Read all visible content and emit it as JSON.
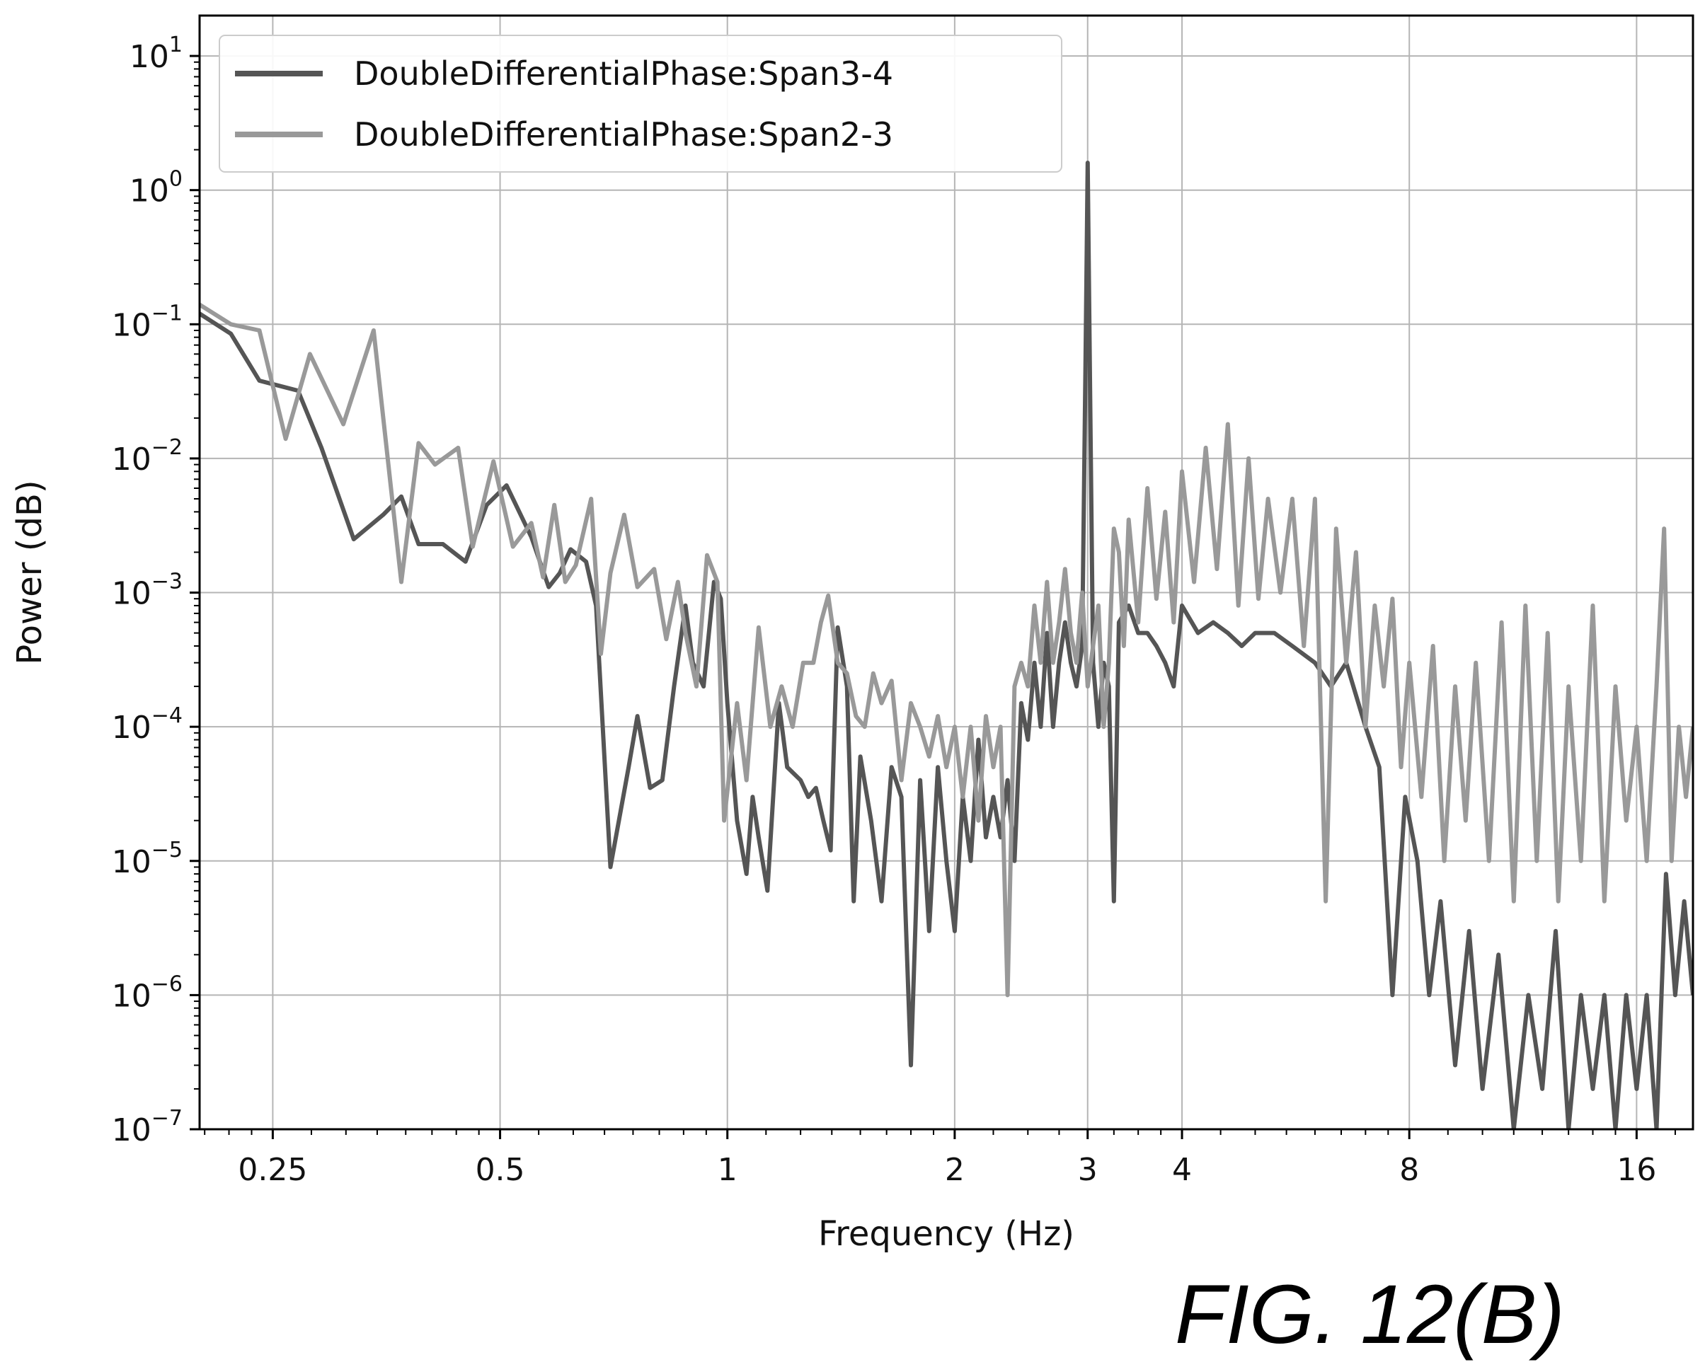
{
  "figure": {
    "caption": "FIG. 12(B)"
  },
  "chart_data": {
    "type": "line",
    "xlabel": "Frequency (Hz)",
    "ylabel": "Power (dB)",
    "xscale": "log2",
    "yscale": "log10",
    "xlim": [
      0.2,
      19.0
    ],
    "ylim": [
      1e-07,
      20
    ],
    "grid": true,
    "legend_position": "top-left",
    "x_ticks": [
      {
        "value": 0.25,
        "label": "0.25"
      },
      {
        "value": 0.5,
        "label": "0.5"
      },
      {
        "value": 1,
        "label": "1"
      },
      {
        "value": 2,
        "label": "2"
      },
      {
        "value": 3,
        "label": "3"
      },
      {
        "value": 4,
        "label": "4"
      },
      {
        "value": 8,
        "label": "8"
      },
      {
        "value": 16,
        "label": "16"
      }
    ],
    "y_ticks": [
      {
        "value": 10,
        "base": "10",
        "exp": "1"
      },
      {
        "value": 1,
        "base": "10",
        "exp": "0"
      },
      {
        "value": 0.1,
        "base": "10",
        "exp": "−1"
      },
      {
        "value": 0.01,
        "base": "10",
        "exp": "−2"
      },
      {
        "value": 0.001,
        "base": "10",
        "exp": "−3"
      },
      {
        "value": 0.0001,
        "base": "10",
        "exp": "−4"
      },
      {
        "value": 1e-05,
        "base": "10",
        "exp": "−5"
      },
      {
        "value": 1e-06,
        "base": "10",
        "exp": "−6"
      },
      {
        "value": 1e-07,
        "base": "10",
        "exp": "−7"
      }
    ],
    "series": [
      {
        "name": "DoubleDifferentialPhase:Span3-4",
        "color": "#555555",
        "points": [
          [
            0.2,
            0.12
          ],
          [
            0.22,
            0.085
          ],
          [
            0.24,
            0.038
          ],
          [
            0.27,
            0.032
          ],
          [
            0.29,
            0.012
          ],
          [
            0.32,
            0.0025
          ],
          [
            0.35,
            0.0038
          ],
          [
            0.37,
            0.0052
          ],
          [
            0.39,
            0.0023
          ],
          [
            0.42,
            0.0023
          ],
          [
            0.45,
            0.0017
          ],
          [
            0.48,
            0.0045
          ],
          [
            0.51,
            0.0063
          ],
          [
            0.55,
            0.0026
          ],
          [
            0.58,
            0.0011
          ],
          [
            0.6,
            0.0014
          ],
          [
            0.62,
            0.0021
          ],
          [
            0.65,
            0.0017
          ],
          [
            0.67,
            0.0008
          ],
          [
            0.7,
            9e-06
          ],
          [
            0.74,
            5e-05
          ],
          [
            0.76,
            0.00012
          ],
          [
            0.79,
            3.5e-05
          ],
          [
            0.82,
            4e-05
          ],
          [
            0.85,
            0.0002
          ],
          [
            0.88,
            0.0008
          ],
          [
            0.9,
            0.0003
          ],
          [
            0.93,
            0.0002
          ],
          [
            0.96,
            0.0012
          ],
          [
            0.98,
            0.0009
          ],
          [
            1.0,
            0.00015
          ],
          [
            1.03,
            2e-05
          ],
          [
            1.06,
            8e-06
          ],
          [
            1.08,
            3e-05
          ],
          [
            1.1,
            1.5e-05
          ],
          [
            1.13,
            6e-06
          ],
          [
            1.17,
            0.00015
          ],
          [
            1.2,
            5e-05
          ],
          [
            1.25,
            4e-05
          ],
          [
            1.28,
            3e-05
          ],
          [
            1.31,
            3.5e-05
          ],
          [
            1.34,
            2e-05
          ],
          [
            1.37,
            1.2e-05
          ],
          [
            1.4,
            0.00055
          ],
          [
            1.44,
            0.0002
          ],
          [
            1.47,
            5e-06
          ],
          [
            1.5,
            6e-05
          ],
          [
            1.55,
            2e-05
          ],
          [
            1.6,
            5e-06
          ],
          [
            1.65,
            5e-05
          ],
          [
            1.7,
            3e-05
          ],
          [
            1.75,
            3e-07
          ],
          [
            1.8,
            4e-05
          ],
          [
            1.85,
            3e-06
          ],
          [
            1.9,
            5e-05
          ],
          [
            1.95,
            1e-05
          ],
          [
            2.0,
            3e-06
          ],
          [
            2.05,
            3e-05
          ],
          [
            2.1,
            1e-05
          ],
          [
            2.15,
            8e-05
          ],
          [
            2.2,
            1.5e-05
          ],
          [
            2.25,
            3e-05
          ],
          [
            2.3,
            1.5e-05
          ],
          [
            2.35,
            4e-05
          ],
          [
            2.4,
            1e-05
          ],
          [
            2.45,
            0.00015
          ],
          [
            2.5,
            8e-05
          ],
          [
            2.55,
            0.0003
          ],
          [
            2.6,
            0.0001
          ],
          [
            2.65,
            0.0005
          ],
          [
            2.7,
            0.0001
          ],
          [
            2.75,
            0.0003
          ],
          [
            2.8,
            0.0006
          ],
          [
            2.85,
            0.0003
          ],
          [
            2.9,
            0.0002
          ],
          [
            2.95,
            0.0004
          ],
          [
            2.98,
            0.05
          ],
          [
            3.0,
            1.6
          ],
          [
            3.02,
            0.05
          ],
          [
            3.05,
            0.0003
          ],
          [
            3.1,
            0.0001
          ],
          [
            3.15,
            0.0003
          ],
          [
            3.2,
            0.0002
          ],
          [
            3.25,
            5e-06
          ],
          [
            3.3,
            0.0006
          ],
          [
            3.4,
            0.0008
          ],
          [
            3.5,
            0.0005
          ],
          [
            3.6,
            0.0005
          ],
          [
            3.7,
            0.0004
          ],
          [
            3.8,
            0.0003
          ],
          [
            3.9,
            0.0002
          ],
          [
            4.0,
            0.0008
          ],
          [
            4.2,
            0.0005
          ],
          [
            4.4,
            0.0006
          ],
          [
            4.6,
            0.0005
          ],
          [
            4.8,
            0.0004
          ],
          [
            5.0,
            0.0005
          ],
          [
            5.3,
            0.0005
          ],
          [
            5.6,
            0.0004
          ],
          [
            6.0,
            0.0003
          ],
          [
            6.3,
            0.0002
          ],
          [
            6.6,
            0.0003
          ],
          [
            7.0,
            0.0001
          ],
          [
            7.3,
            5e-05
          ],
          [
            7.6,
            1e-06
          ],
          [
            7.9,
            3e-05
          ],
          [
            8.2,
            1e-05
          ],
          [
            8.5,
            1e-06
          ],
          [
            8.8,
            5e-06
          ],
          [
            9.2,
            3e-07
          ],
          [
            9.6,
            3e-06
          ],
          [
            10.0,
            2e-07
          ],
          [
            10.5,
            2e-06
          ],
          [
            11.0,
            1e-07
          ],
          [
            11.5,
            1e-06
          ],
          [
            12.0,
            2e-07
          ],
          [
            12.5,
            3e-06
          ],
          [
            13.0,
            1e-07
          ],
          [
            13.5,
            1e-06
          ],
          [
            14.0,
            2e-07
          ],
          [
            14.5,
            1e-06
          ],
          [
            15.0,
            1e-07
          ],
          [
            15.5,
            1e-06
          ],
          [
            16.0,
            2e-07
          ],
          [
            16.5,
            1e-06
          ],
          [
            17.0,
            1e-07
          ],
          [
            17.5,
            8e-06
          ],
          [
            18.0,
            1e-06
          ],
          [
            18.5,
            5e-06
          ],
          [
            19.0,
            1e-06
          ]
        ]
      },
      {
        "name": "DoubleDifferentialPhase:Span2-3",
        "color": "#999999",
        "points": [
          [
            0.2,
            0.14
          ],
          [
            0.22,
            0.1
          ],
          [
            0.24,
            0.09
          ],
          [
            0.26,
            0.014
          ],
          [
            0.28,
            0.06
          ],
          [
            0.31,
            0.018
          ],
          [
            0.34,
            0.09
          ],
          [
            0.37,
            0.0012
          ],
          [
            0.39,
            0.013
          ],
          [
            0.41,
            0.009
          ],
          [
            0.44,
            0.012
          ],
          [
            0.46,
            0.0022
          ],
          [
            0.49,
            0.0095
          ],
          [
            0.52,
            0.0022
          ],
          [
            0.55,
            0.0033
          ],
          [
            0.57,
            0.0013
          ],
          [
            0.59,
            0.0045
          ],
          [
            0.61,
            0.0012
          ],
          [
            0.63,
            0.0016
          ],
          [
            0.66,
            0.005
          ],
          [
            0.68,
            0.00035
          ],
          [
            0.7,
            0.0014
          ],
          [
            0.73,
            0.0038
          ],
          [
            0.76,
            0.0011
          ],
          [
            0.8,
            0.0015
          ],
          [
            0.83,
            0.00045
          ],
          [
            0.86,
            0.0012
          ],
          [
            0.88,
            0.0005
          ],
          [
            0.91,
            0.0002
          ],
          [
            0.94,
            0.0019
          ],
          [
            0.97,
            0.0012
          ],
          [
            0.99,
            2e-05
          ],
          [
            1.03,
            0.00015
          ],
          [
            1.06,
            4e-05
          ],
          [
            1.1,
            0.00055
          ],
          [
            1.14,
            0.0001
          ],
          [
            1.18,
            0.0002
          ],
          [
            1.22,
            0.0001
          ],
          [
            1.26,
            0.0003
          ],
          [
            1.3,
            0.0003
          ],
          [
            1.33,
            0.0006
          ],
          [
            1.36,
            0.00095
          ],
          [
            1.4,
            0.0003
          ],
          [
            1.44,
            0.00025
          ],
          [
            1.48,
            0.00012
          ],
          [
            1.52,
            0.0001
          ],
          [
            1.56,
            0.00025
          ],
          [
            1.6,
            0.00015
          ],
          [
            1.65,
            0.00022
          ],
          [
            1.7,
            4e-05
          ],
          [
            1.75,
            0.00015
          ],
          [
            1.8,
            0.0001
          ],
          [
            1.85,
            6e-05
          ],
          [
            1.9,
            0.00012
          ],
          [
            1.95,
            5e-05
          ],
          [
            2.0,
            0.0001
          ],
          [
            2.05,
            3e-05
          ],
          [
            2.1,
            0.0001
          ],
          [
            2.15,
            2e-05
          ],
          [
            2.2,
            0.00012
          ],
          [
            2.25,
            5e-05
          ],
          [
            2.3,
            0.0001
          ],
          [
            2.35,
            1e-06
          ],
          [
            2.4,
            0.0002
          ],
          [
            2.45,
            0.0003
          ],
          [
            2.5,
            0.0002
          ],
          [
            2.55,
            0.0008
          ],
          [
            2.6,
            0.0003
          ],
          [
            2.65,
            0.0012
          ],
          [
            2.7,
            0.0003
          ],
          [
            2.75,
            0.0006
          ],
          [
            2.8,
            0.0015
          ],
          [
            2.85,
            0.0005
          ],
          [
            2.9,
            0.0003
          ],
          [
            2.95,
            0.001
          ],
          [
            3.0,
            0.0002
          ],
          [
            3.05,
            0.0004
          ],
          [
            3.1,
            0.0008
          ],
          [
            3.15,
            0.0001
          ],
          [
            3.2,
            0.0003
          ],
          [
            3.25,
            0.003
          ],
          [
            3.3,
            0.002
          ],
          [
            3.35,
            0.0004
          ],
          [
            3.4,
            0.0035
          ],
          [
            3.5,
            0.0006
          ],
          [
            3.6,
            0.006
          ],
          [
            3.7,
            0.0009
          ],
          [
            3.8,
            0.004
          ],
          [
            3.9,
            0.0006
          ],
          [
            4.0,
            0.008
          ],
          [
            4.15,
            0.0012
          ],
          [
            4.3,
            0.012
          ],
          [
            4.45,
            0.0015
          ],
          [
            4.6,
            0.018
          ],
          [
            4.75,
            0.0008
          ],
          [
            4.9,
            0.01
          ],
          [
            5.05,
            0.0009
          ],
          [
            5.2,
            0.005
          ],
          [
            5.4,
            0.001
          ],
          [
            5.6,
            0.005
          ],
          [
            5.8,
            0.0004
          ],
          [
            6.0,
            0.005
          ],
          [
            6.2,
            5e-06
          ],
          [
            6.4,
            0.003
          ],
          [
            6.6,
            0.0003
          ],
          [
            6.8,
            0.002
          ],
          [
            7.0,
            0.0001
          ],
          [
            7.2,
            0.0008
          ],
          [
            7.4,
            0.0002
          ],
          [
            7.6,
            0.0009
          ],
          [
            7.8,
            5e-05
          ],
          [
            8.0,
            0.0003
          ],
          [
            8.3,
            3e-05
          ],
          [
            8.6,
            0.0004
          ],
          [
            8.9,
            1e-05
          ],
          [
            9.2,
            0.0002
          ],
          [
            9.5,
            2e-05
          ],
          [
            9.8,
            0.0003
          ],
          [
            10.2,
            1e-05
          ],
          [
            10.6,
            0.0006
          ],
          [
            11.0,
            5e-06
          ],
          [
            11.4,
            0.0008
          ],
          [
            11.8,
            1e-05
          ],
          [
            12.2,
            0.0005
          ],
          [
            12.6,
            5e-06
          ],
          [
            13.0,
            0.0002
          ],
          [
            13.5,
            1e-05
          ],
          [
            14.0,
            0.0008
          ],
          [
            14.5,
            5e-06
          ],
          [
            15.0,
            0.0002
          ],
          [
            15.5,
            2e-05
          ],
          [
            16.0,
            0.0001
          ],
          [
            16.5,
            1e-05
          ],
          [
            17.0,
            0.0002
          ],
          [
            17.4,
            0.003
          ],
          [
            17.8,
            1e-05
          ],
          [
            18.2,
            0.0001
          ],
          [
            18.6,
            3e-05
          ],
          [
            19.0,
            0.0001
          ]
        ]
      }
    ]
  }
}
